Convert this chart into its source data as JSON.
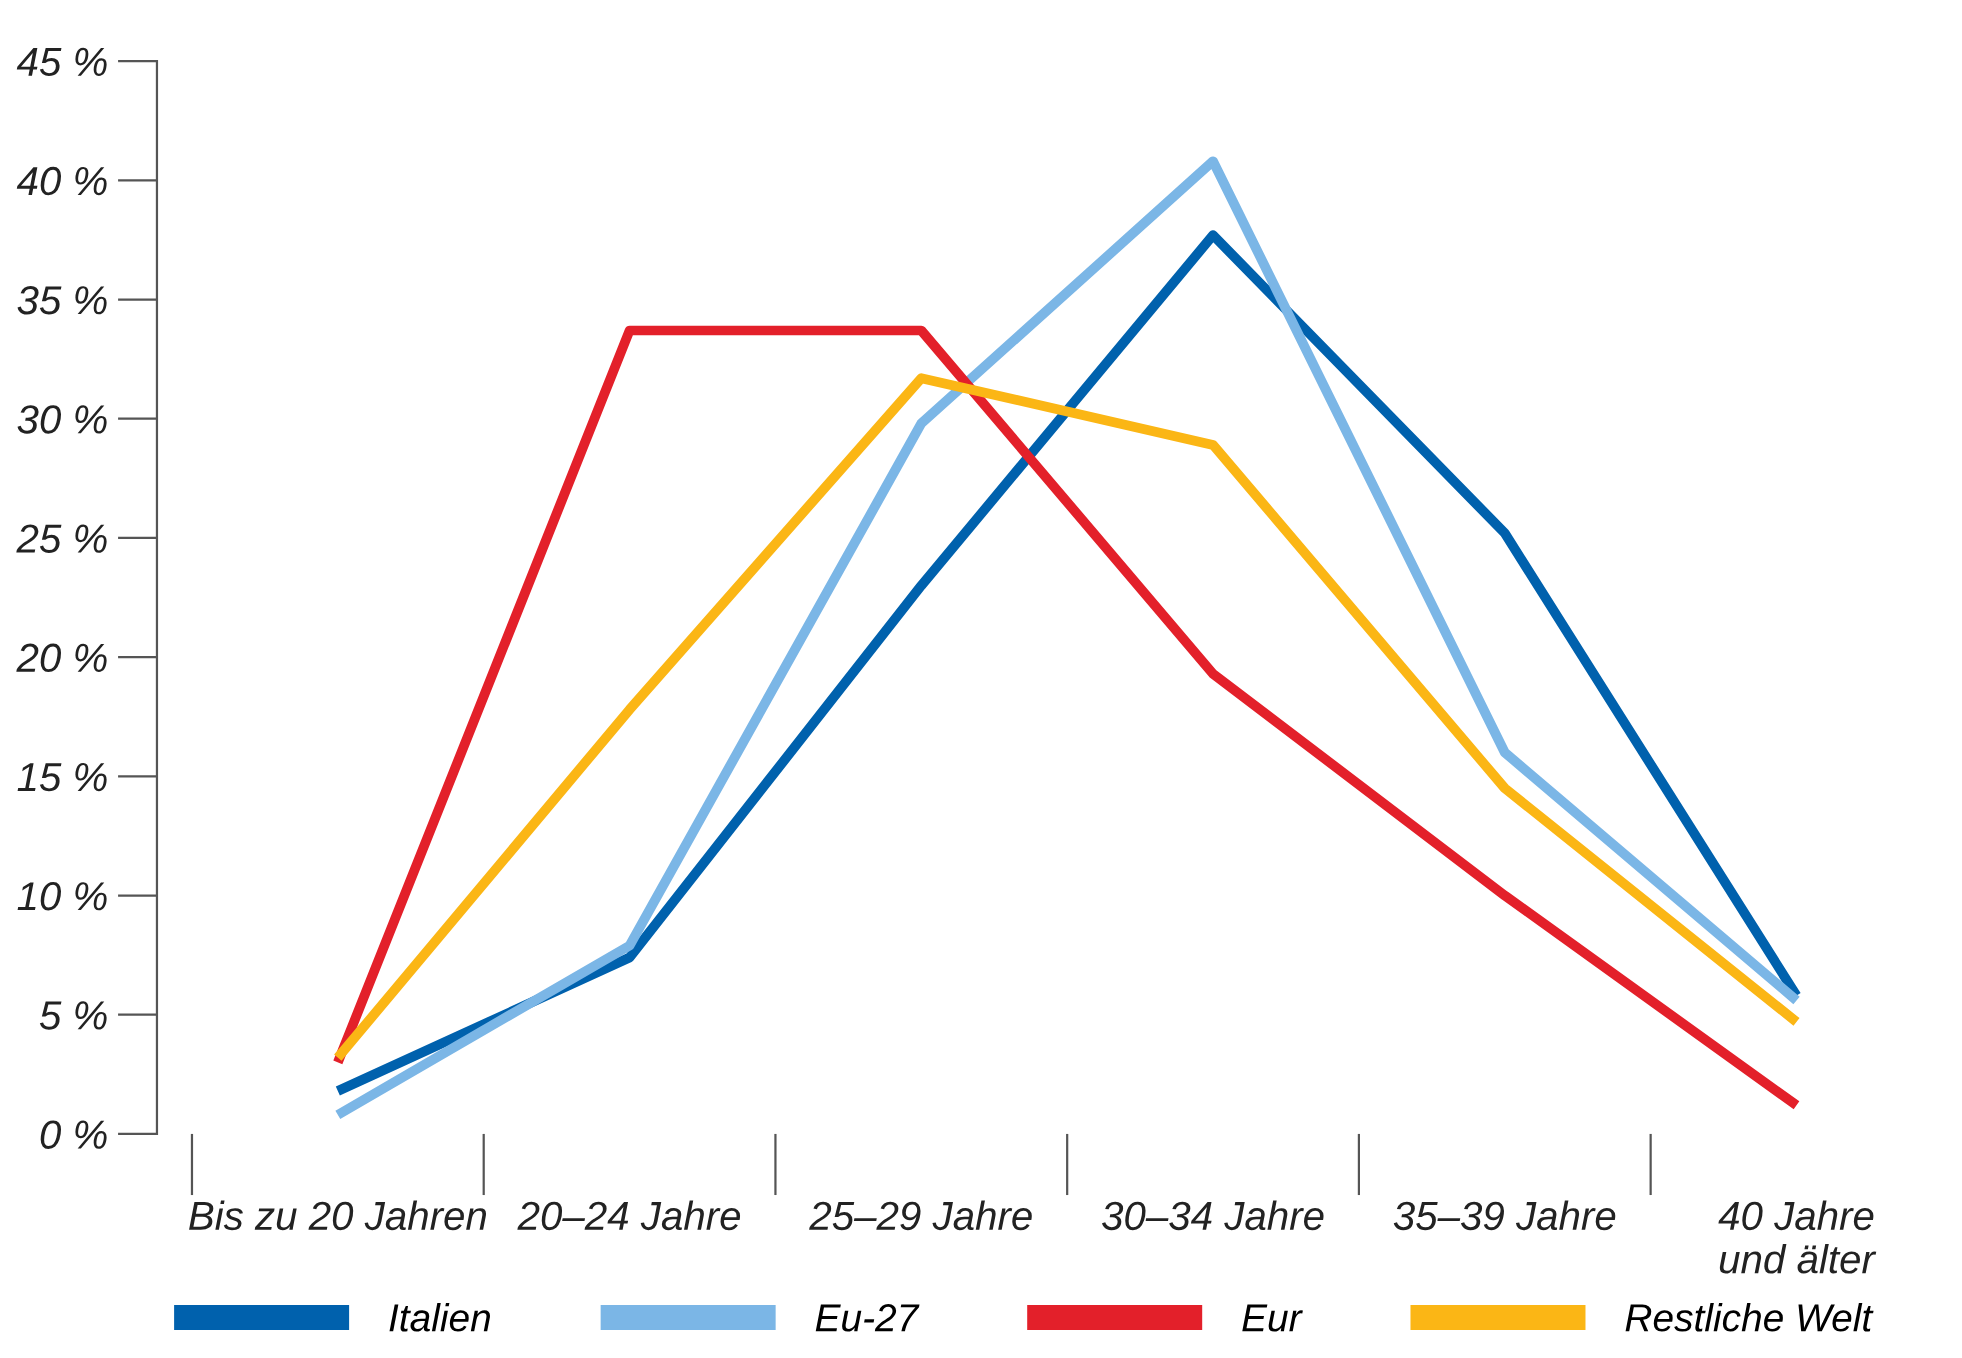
{
  "chart_data": {
    "type": "line",
    "categories": [
      "Bis zu 20 Jahren",
      "20–24 Jahre",
      "25–29 Jahre",
      "30–34 Jahre",
      "35–39 Jahre",
      "40 Jahre\nund älter"
    ],
    "series": [
      {
        "name": "Italien",
        "color": "#0061ad",
        "values": [
          1.8,
          7.4,
          23.0,
          37.7,
          25.2,
          5.8
        ]
      },
      {
        "name": "Eu-27",
        "color": "#7bb6e6",
        "values": [
          0.8,
          7.9,
          29.8,
          40.8,
          16.0,
          5.6
        ]
      },
      {
        "name": "Eur",
        "color": "#e3202a",
        "values": [
          3.0,
          33.7,
          33.7,
          19.3,
          10.0,
          1.2
        ]
      },
      {
        "name": "Restliche Welt",
        "color": "#fbb615",
        "values": [
          3.2,
          17.8,
          31.7,
          28.9,
          14.5,
          4.7
        ]
      }
    ],
    "ylim": [
      0,
      45
    ],
    "yticks": [
      {
        "value": 0,
        "label": "0 %"
      },
      {
        "value": 5,
        "label": "5 %"
      },
      {
        "value": 10,
        "label": "10 %"
      },
      {
        "value": 15,
        "label": "15 %"
      },
      {
        "value": 20,
        "label": "20 %"
      },
      {
        "value": 25,
        "label": "25 %"
      },
      {
        "value": 30,
        "label": "30 %"
      },
      {
        "value": 35,
        "label": "35 %"
      },
      {
        "value": 40,
        "label": "40 %"
      },
      {
        "value": 45,
        "label": "45 %"
      }
    ],
    "grid": false,
    "legend": "bottom",
    "marker": "none",
    "line_style": "solid"
  }
}
